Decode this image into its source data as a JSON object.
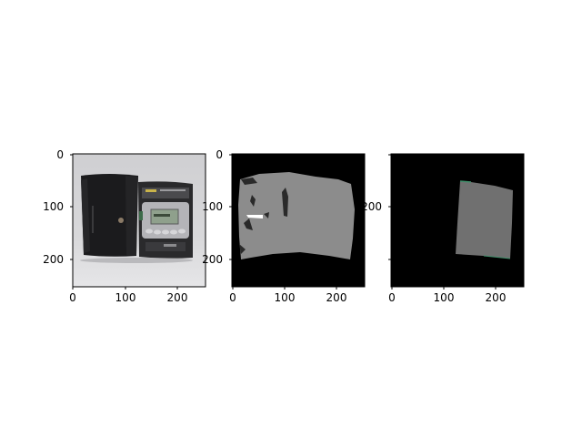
{
  "figure": {
    "background": "#ffffff",
    "axis_color": "#000000",
    "panels": [
      {
        "name": "photo",
        "xticks": [
          "0",
          "100",
          "200"
        ],
        "yticks": [
          "0",
          "100",
          "200"
        ],
        "content": "photograph of a black leather case beside a silver-and-black cassette player with LCD display"
      },
      {
        "name": "segmentation-mask",
        "xticks": [
          "0",
          "100",
          "200"
        ],
        "yticks": [
          "0",
          "100",
          "200"
        ],
        "colors": {
          "background": "#000000",
          "region": "#8c8c8c",
          "holes": "#2a2a2a",
          "highlight": "#ffffff"
        }
      },
      {
        "name": "object-mask",
        "xticks": [
          "0",
          "100",
          "200"
        ],
        "yticks": [
          "200"
        ],
        "colors": {
          "background": "#000000",
          "region": "#707070"
        }
      }
    ]
  }
}
